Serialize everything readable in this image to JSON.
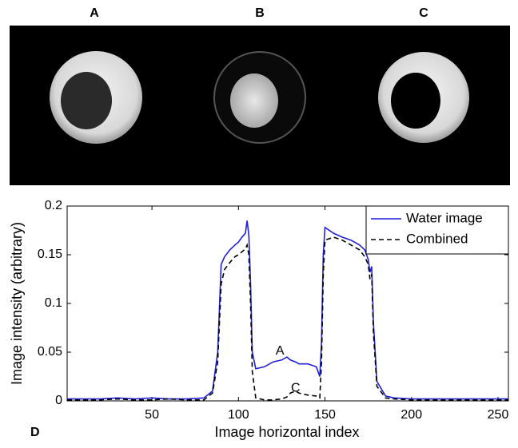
{
  "panels": [
    "A",
    "B",
    "C"
  ],
  "figure_label": "D",
  "chart_data": {
    "type": "line",
    "xlabel": "Image horizontal index",
    "ylabel": "Image intensity (arbitrary)",
    "x": [
      1,
      10,
      20,
      30,
      40,
      50,
      60,
      70,
      80,
      85,
      88,
      90,
      92,
      95,
      98,
      100,
      102,
      104,
      105,
      106,
      107,
      108,
      110,
      115,
      120,
      125,
      128,
      130,
      133,
      135,
      140,
      145,
      147,
      148,
      149,
      150,
      155,
      160,
      165,
      170,
      173,
      175,
      176,
      177,
      178,
      180,
      185,
      190,
      200,
      210,
      220,
      230,
      240,
      250,
      256
    ],
    "series": [
      {
        "name": "Water image",
        "color": "#1f1fd6",
        "dash": "solid",
        "values": [
          0.002,
          0.002,
          0.002,
          0.003,
          0.002,
          0.003,
          0.002,
          0.002,
          0.003,
          0.01,
          0.05,
          0.14,
          0.148,
          0.155,
          0.16,
          0.163,
          0.168,
          0.172,
          0.185,
          0.17,
          0.12,
          0.05,
          0.033,
          0.035,
          0.04,
          0.042,
          0.045,
          0.042,
          0.04,
          0.038,
          0.038,
          0.035,
          0.025,
          0.06,
          0.15,
          0.178,
          0.172,
          0.168,
          0.165,
          0.16,
          0.155,
          0.145,
          0.132,
          0.138,
          0.08,
          0.02,
          0.005,
          0.003,
          0.002,
          0.002,
          0.002,
          0.002,
          0.002,
          0.002,
          0.002
        ]
      },
      {
        "name": "Combined",
        "color": "#000000",
        "dash": "dashed",
        "values": [
          0.001,
          0.001,
          0.001,
          0.002,
          0.001,
          0.001,
          0.002,
          0.001,
          0.001,
          0.008,
          0.04,
          0.12,
          0.135,
          0.142,
          0.148,
          0.15,
          0.153,
          0.156,
          0.16,
          0.15,
          0.1,
          0.03,
          0.003,
          0.001,
          0.001,
          0.002,
          0.004,
          0.008,
          0.01,
          0.008,
          0.006,
          0.005,
          0.003,
          0.04,
          0.13,
          0.165,
          0.168,
          0.165,
          0.16,
          0.155,
          0.148,
          0.14,
          0.125,
          0.13,
          0.07,
          0.015,
          0.003,
          0.002,
          0.001,
          0.001,
          0.001,
          0.001,
          0.001,
          0.001,
          0.001
        ]
      }
    ],
    "annotations": [
      {
        "text": "A",
        "x": 124,
        "y": 0.051
      },
      {
        "text": "C",
        "x": 133,
        "y": 0.013
      }
    ],
    "xlim": [
      1,
      256
    ],
    "ylim": [
      0,
      0.2
    ],
    "xticks": [
      50,
      100,
      150,
      200,
      250
    ],
    "yticks": [
      0,
      0.05,
      0.1,
      0.15,
      0.2
    ],
    "legend": "upper-right",
    "grid": false
  }
}
